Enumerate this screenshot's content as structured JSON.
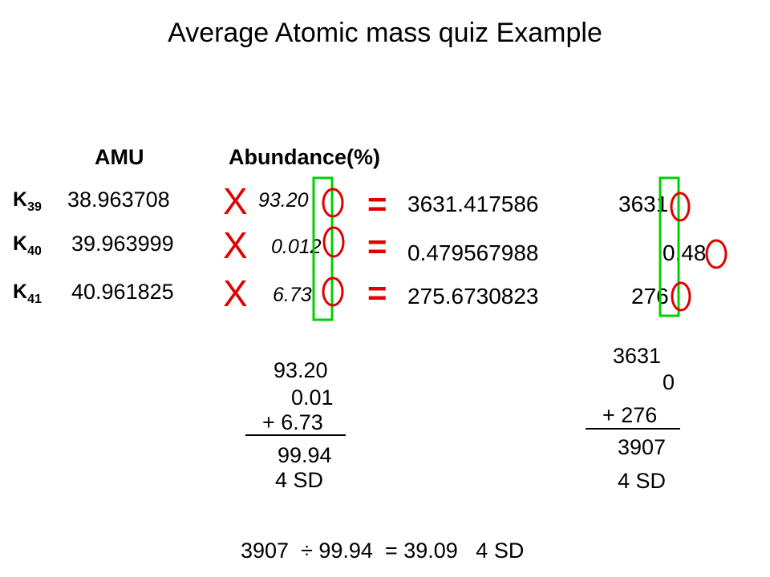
{
  "title": "Average Atomic mass quiz Example",
  "headers": {
    "amu": "AMU",
    "abundance": "Abundance(%)"
  },
  "rows": [
    {
      "symbol": "K",
      "mass_number": "39",
      "amu": "38.963708",
      "times": "X",
      "abundance": "93.20",
      "equals": "=",
      "product": "3631.417586",
      "rounded": "3631"
    },
    {
      "symbol": "K",
      "mass_number": "40",
      "amu": "39.963999",
      "times": "X",
      "abundance": "0.012",
      "equals": "=",
      "product": "0.479567988",
      "rounded": "0.48"
    },
    {
      "symbol": "K",
      "mass_number": "41",
      "amu": "40.961825",
      "times": "X",
      "abundance": "6.73",
      "equals": "=",
      "product": "275.6730823",
      "rounded": "276"
    }
  ],
  "abundance_sum": {
    "line1": "93.20",
    "line2": "0.01",
    "line3": "+ 6.73",
    "total": "99.94",
    "sd": "4 SD"
  },
  "product_sum": {
    "line1": "3631",
    "line2": "0",
    "line3": "+ 276",
    "total": "3907",
    "sd": "4 SD"
  },
  "final": "3907  ÷ 99.94  = 39.09   4 SD",
  "colors": {
    "times": "#e00000",
    "circle": "#e00000",
    "box": "#00d000"
  }
}
